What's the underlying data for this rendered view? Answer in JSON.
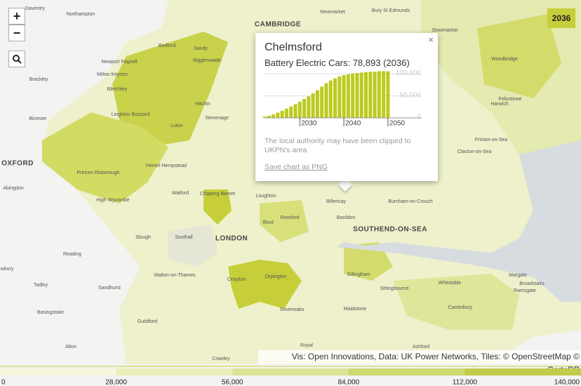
{
  "controls": {
    "zoom_in": "+",
    "zoom_out": "−"
  },
  "year_badge": "2036",
  "places": [
    "Daventry",
    "Northampton",
    "Newmarket",
    "Bury St Edmunds",
    "CAMBRIDGE",
    "Stowmarket",
    "Bedford",
    "Sandy",
    "Newport Pagnell",
    "Milton Keynes",
    "Biggleswade",
    "Woodbridge",
    "Brackley",
    "Bletchley",
    "Felixstowe",
    "Harwich",
    "Hitchin",
    "Leighton Buzzard",
    "Stevenage",
    "Bicester",
    "Luton",
    "Frinton-on-Sea",
    "Clacton-on-Sea",
    "OXFORD",
    "Hemel Hempstead",
    "Abingdon",
    "Princes Risborough",
    "Watford",
    "Chipping Barnet",
    "Loughton",
    "Billericay",
    "Burnham-on-Crouch",
    "High Wycombe",
    "Basildon",
    "Romford",
    "Ilford",
    "SOUTHEND-ON-SEA",
    "Slough",
    "Southall",
    "LONDON",
    "Reading",
    "Walton-on-Thames",
    "Gillingham",
    "Margate",
    "Whitstable",
    "Broadstairs",
    "Croydon",
    "Orpington",
    "wbury",
    "Sittingbourne",
    "Ramsgate",
    "Tadley",
    "Sandhurst",
    "Canterbury",
    "Sevenoaks",
    "Maidstone",
    "Basingstoke",
    "Guildford",
    "Ashford",
    "Alton",
    "Royal",
    "Crawley"
  ],
  "popup": {
    "title": "Chelmsford",
    "close": "×",
    "note": "The local authority may have been clipped to UKPN's area",
    "link": "Save chart as PNG"
  },
  "chart_data": {
    "type": "bar",
    "title": "Battery Electric Cars: 78,893 (2036)",
    "x": [
      2022,
      2023,
      2024,
      2025,
      2026,
      2027,
      2028,
      2029,
      2030,
      2031,
      2032,
      2033,
      2034,
      2035,
      2036,
      2037,
      2038,
      2039,
      2040,
      2041,
      2042,
      2043,
      2044,
      2045,
      2046,
      2047,
      2048,
      2049,
      2050
    ],
    "values": [
      3000,
      5000,
      8000,
      12000,
      16000,
      21000,
      26000,
      31000,
      37000,
      43000,
      49000,
      56000,
      63000,
      71000,
      78893,
      85000,
      90000,
      94000,
      97000,
      99000,
      101000,
      102000,
      103000,
      104000,
      105000,
      105000,
      106000,
      106000,
      106000
    ],
    "color": "#bccb1f",
    "xlim": [
      2022,
      2057.5
    ],
    "ylim": [
      0,
      110000
    ],
    "xticks": [
      2030,
      2040,
      2050
    ],
    "yticks": [
      0,
      {
        "value": 50000,
        "label": "50,000"
      },
      {
        "value": 100000,
        "label": "100,000"
      }
    ],
    "grid": true
  },
  "attribution": "Vis: Open Innovations, Data: UK Power Networks, Tiles: © OpenStreetMap © CartoDB",
  "legend": {
    "ticks": [
      0,
      {
        "value": 28000,
        "label": "28,000"
      },
      {
        "value": 56000,
        "label": "56,000"
      },
      {
        "value": 84000,
        "label": "84,000"
      },
      {
        "value": 112000,
        "label": "112,000"
      },
      {
        "value": 140000,
        "label": "140,000"
      }
    ],
    "colors": [
      "#f6f7dd",
      "#e9eebb",
      "#dbe395",
      "#cdd86f",
      "#bfcd48"
    ]
  }
}
